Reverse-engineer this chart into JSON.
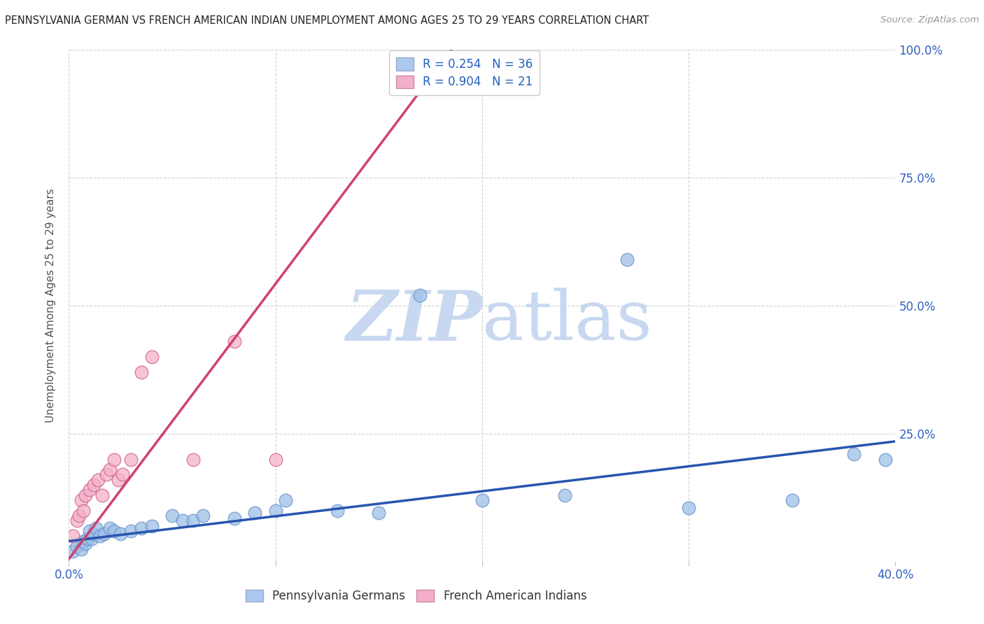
{
  "title": "PENNSYLVANIA GERMAN VS FRENCH AMERICAN INDIAN UNEMPLOYMENT AMONG AGES 25 TO 29 YEARS CORRELATION CHART",
  "source": "Source: ZipAtlas.com",
  "ylabel": "Unemployment Among Ages 25 to 29 years",
  "xlim": [
    0.0,
    0.4
  ],
  "ylim": [
    0.0,
    1.0
  ],
  "legend_entry1_r": "0.254",
  "legend_entry1_n": "36",
  "legend_entry2_r": "0.904",
  "legend_entry2_n": "21",
  "legend_color1": "#adc8f0",
  "legend_color2": "#f4b0c8",
  "scatter_blue_x": [
    0.002,
    0.004,
    0.006,
    0.007,
    0.008,
    0.009,
    0.01,
    0.011,
    0.012,
    0.013,
    0.015,
    0.017,
    0.02,
    0.022,
    0.025,
    0.03,
    0.035,
    0.04,
    0.05,
    0.055,
    0.06,
    0.065,
    0.08,
    0.09,
    0.1,
    0.105,
    0.13,
    0.15,
    0.17,
    0.2,
    0.24,
    0.27,
    0.3,
    0.35,
    0.38,
    0.395
  ],
  "scatter_blue_y": [
    0.02,
    0.03,
    0.025,
    0.04,
    0.035,
    0.045,
    0.06,
    0.045,
    0.055,
    0.065,
    0.05,
    0.055,
    0.065,
    0.06,
    0.055,
    0.06,
    0.065,
    0.07,
    0.09,
    0.08,
    0.08,
    0.09,
    0.085,
    0.095,
    0.1,
    0.12,
    0.1,
    0.095,
    0.52,
    0.12,
    0.13,
    0.59,
    0.105,
    0.12,
    0.21,
    0.2
  ],
  "scatter_pink_x": [
    0.002,
    0.004,
    0.005,
    0.006,
    0.007,
    0.008,
    0.01,
    0.012,
    0.014,
    0.016,
    0.018,
    0.02,
    0.022,
    0.024,
    0.026,
    0.03,
    0.035,
    0.04,
    0.06,
    0.08,
    0.1
  ],
  "scatter_pink_y": [
    0.05,
    0.08,
    0.09,
    0.12,
    0.1,
    0.13,
    0.14,
    0.15,
    0.16,
    0.13,
    0.17,
    0.18,
    0.2,
    0.16,
    0.17,
    0.2,
    0.37,
    0.4,
    0.2,
    0.43,
    0.2
  ],
  "blue_line_x": [
    0.0,
    0.4
  ],
  "blue_line_y": [
    0.04,
    0.235
  ],
  "pink_line_x": [
    0.0,
    0.185
  ],
  "pink_line_y": [
    0.005,
    1.0
  ],
  "blue_scatter_color": "#9dbfe8",
  "blue_scatter_edge": "#6890c8",
  "pink_scatter_color": "#f4b0c8",
  "pink_scatter_edge": "#d06090",
  "blue_line_color": "#2855b0",
  "pink_line_color": "#d04070",
  "watermark_zip_color": "#c8d8f0",
  "watermark_atlas_color": "#c8d8f0",
  "grid_color": "#cccccc",
  "background_color": "#ffffff",
  "ytick_right_labels": [
    "",
    "25.0%",
    "50.0%",
    "75.0%",
    "100.0%"
  ],
  "ytick_positions": [
    0.0,
    0.25,
    0.5,
    0.75,
    1.0
  ],
  "xtick_positions": [
    0.0,
    0.1,
    0.2,
    0.3,
    0.4
  ],
  "xtick_labels": [
    "0.0%",
    "",
    "",
    "",
    "40.0%"
  ]
}
